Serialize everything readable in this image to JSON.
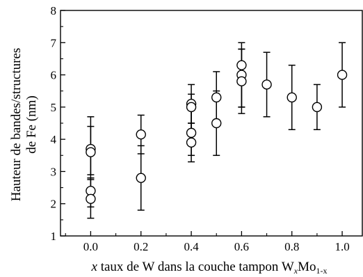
{
  "chart_data": {
    "type": "scatter",
    "title": "",
    "xlabel": {
      "variable": "x",
      "text": " taux de W dans la couche tampon W",
      "sub1": "x",
      "mid": "Mo",
      "sub2": "1-x"
    },
    "ylabel": {
      "line1": "Hauteur de bandes/structures",
      "line2": "de Fe  (nm)"
    },
    "xlim": [
      -0.12,
      1.08
    ],
    "ylim": [
      1,
      8
    ],
    "xticks": [
      0.0,
      0.2,
      0.4,
      0.6,
      0.8,
      1.0
    ],
    "xtick_labels": [
      "0.0",
      "0.2",
      "0.4",
      "0.6",
      "0.8",
      "1.0"
    ],
    "yticks": [
      1,
      2,
      3,
      4,
      5,
      6,
      7,
      8
    ],
    "ytick_labels": [
      "1",
      "2",
      "3",
      "4",
      "5",
      "6",
      "7",
      "8"
    ],
    "grid": false,
    "legend": "none",
    "marker": "open-circle",
    "series": [
      {
        "points": [
          {
            "x": 0.0,
            "y": 3.7,
            "err_low": 2.9,
            "err_high": 4.4
          },
          {
            "x": 0.0,
            "y": 3.6,
            "err_low": 2.8,
            "err_high": 4.7
          },
          {
            "x": 0.0,
            "y": 2.4,
            "err_low": 1.9,
            "err_high": 2.8
          },
          {
            "x": 0.0,
            "y": 2.15,
            "err_low": 1.55,
            "err_high": 2.75
          },
          {
            "x": 0.2,
            "y": 4.15,
            "err_low": 3.55,
            "err_high": 4.75
          },
          {
            "x": 0.2,
            "y": 2.8,
            "err_low": 1.8,
            "err_high": 3.8
          },
          {
            "x": 0.4,
            "y": 5.1,
            "err_low": 4.5,
            "err_high": 5.7
          },
          {
            "x": 0.4,
            "y": 5.0,
            "err_low": 4.3,
            "err_high": 5.4
          },
          {
            "x": 0.4,
            "y": 4.2,
            "err_low": 3.5,
            "err_high": 4.9
          },
          {
            "x": 0.4,
            "y": 3.9,
            "err_low": 3.3,
            "err_high": 4.5
          },
          {
            "x": 0.5,
            "y": 5.3,
            "err_low": 4.5,
            "err_high": 6.1
          },
          {
            "x": 0.5,
            "y": 4.5,
            "err_low": 3.5,
            "err_high": 5.5
          },
          {
            "x": 0.6,
            "y": 6.3,
            "err_low": 5.0,
            "err_high": 7.0
          },
          {
            "x": 0.6,
            "y": 6.0,
            "err_low": 5.0,
            "err_high": 6.8
          },
          {
            "x": 0.6,
            "y": 5.8,
            "err_low": 4.8,
            "err_high": 6.8
          },
          {
            "x": 0.7,
            "y": 5.7,
            "err_low": 4.7,
            "err_high": 6.7
          },
          {
            "x": 0.8,
            "y": 5.3,
            "err_low": 4.3,
            "err_high": 6.3
          },
          {
            "x": 0.9,
            "y": 5.0,
            "err_low": 4.3,
            "err_high": 5.7
          },
          {
            "x": 1.0,
            "y": 6.0,
            "err_low": 5.0,
            "err_high": 7.0
          }
        ]
      }
    ]
  }
}
